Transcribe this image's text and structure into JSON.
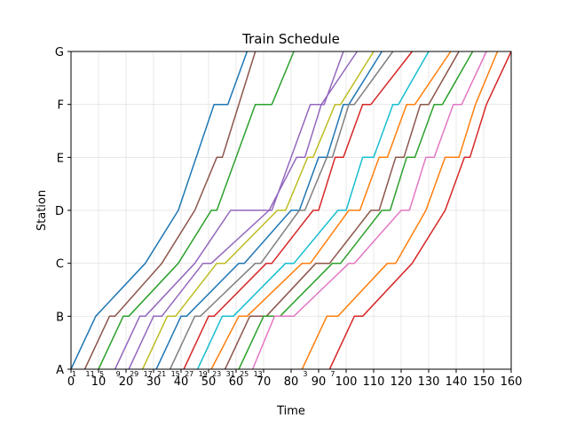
{
  "chart_data": {
    "type": "line",
    "title": "Train Schedule",
    "xlabel": "Time",
    "ylabel": "Station",
    "xlim": [
      0,
      160
    ],
    "x_ticks": [
      0,
      10,
      20,
      30,
      40,
      50,
      60,
      70,
      80,
      90,
      100,
      110,
      120,
      130,
      140,
      150,
      160
    ],
    "stations": [
      "A",
      "B",
      "C",
      "D",
      "E",
      "F",
      "G"
    ],
    "grid": true,
    "dwell": 3,
    "series": [
      {
        "name": "1",
        "color": "#1f77b4",
        "points": [
          [
            0,
            0
          ],
          [
            9,
            1
          ],
          [
            27,
            2
          ],
          [
            39,
            3
          ],
          [
            52,
            5
          ],
          [
            57,
            5
          ],
          [
            64,
            6
          ]
        ]
      },
      {
        "name": "11",
        "color": "#8c564b",
        "points": [
          [
            5,
            0
          ],
          [
            14,
            1
          ],
          [
            16,
            1
          ],
          [
            33,
            2
          ],
          [
            45,
            3
          ],
          [
            53,
            4
          ],
          [
            55,
            4
          ],
          [
            67,
            6
          ]
        ]
      },
      {
        "name": "5",
        "color": "#2ca02c",
        "points": [
          [
            10,
            0
          ],
          [
            19,
            1
          ],
          [
            21,
            1
          ],
          [
            39,
            2
          ],
          [
            51,
            3
          ],
          [
            53,
            3
          ],
          [
            67,
            5
          ],
          [
            73,
            5
          ],
          [
            81,
            6
          ]
        ]
      },
      {
        "name": "9",
        "color": "#9467bd",
        "points": [
          [
            16,
            0
          ],
          [
            25,
            1
          ],
          [
            27,
            1
          ],
          [
            45,
            2
          ],
          [
            58,
            3
          ],
          [
            71,
            3
          ],
          [
            73,
            3
          ],
          [
            80,
            4
          ],
          [
            87,
            5
          ],
          [
            92,
            5
          ],
          [
            99,
            6
          ]
        ]
      },
      {
        "name": "29",
        "color": "#9467bd",
        "points": [
          [
            21,
            0
          ],
          [
            30,
            1
          ],
          [
            33,
            1
          ],
          [
            48,
            2
          ],
          [
            51,
            2
          ],
          [
            72,
            3
          ],
          [
            82,
            4
          ],
          [
            85,
            4
          ],
          [
            91,
            5
          ],
          [
            104,
            6
          ]
        ]
      },
      {
        "name": "17",
        "color": "#bcbd22",
        "points": [
          [
            26,
            0
          ],
          [
            35,
            1
          ],
          [
            38,
            1
          ],
          [
            53,
            2
          ],
          [
            56,
            2
          ],
          [
            75,
            3
          ],
          [
            78,
            3
          ],
          [
            86,
            4
          ],
          [
            88,
            4
          ],
          [
            96,
            5
          ],
          [
            98,
            5
          ],
          [
            110,
            6
          ]
        ]
      },
      {
        "name": "21",
        "color": "#1f77b4",
        "points": [
          [
            31,
            0
          ],
          [
            40,
            1
          ],
          [
            42,
            1
          ],
          [
            61,
            2
          ],
          [
            63,
            2
          ],
          [
            80,
            3
          ],
          [
            83,
            3
          ],
          [
            90,
            4
          ],
          [
            93,
            4
          ],
          [
            99,
            5
          ],
          [
            101,
            5
          ],
          [
            113,
            6
          ]
        ]
      },
      {
        "name": "15",
        "color": "#7f7f7f",
        "points": [
          [
            36,
            0
          ],
          [
            45,
            1
          ],
          [
            47,
            1
          ],
          [
            67,
            2
          ],
          [
            69,
            2
          ],
          [
            83,
            3
          ],
          [
            85,
            3
          ],
          [
            93,
            4
          ],
          [
            95,
            4
          ],
          [
            101,
            5
          ],
          [
            103,
            5
          ],
          [
            117,
            6
          ]
        ]
      },
      {
        "name": "27",
        "color": "#d62728",
        "points": [
          [
            41,
            0
          ],
          [
            50,
            1
          ],
          [
            52,
            1
          ],
          [
            71,
            2
          ],
          [
            73,
            2
          ],
          [
            88,
            3
          ],
          [
            90,
            3
          ],
          [
            96,
            4
          ],
          [
            99,
            4
          ],
          [
            106,
            5
          ],
          [
            109,
            5
          ],
          [
            124,
            6
          ]
        ]
      },
      {
        "name": "19",
        "color": "#17becf",
        "points": [
          [
            46,
            0
          ],
          [
            55,
            1
          ],
          [
            59,
            1
          ],
          [
            78,
            2
          ],
          [
            81,
            2
          ],
          [
            97,
            3
          ],
          [
            100,
            3
          ],
          [
            106,
            4
          ],
          [
            110,
            4
          ],
          [
            117,
            5
          ],
          [
            119,
            5
          ],
          [
            130,
            6
          ]
        ]
      },
      {
        "name": "23",
        "color": "#ff7f0e",
        "points": [
          [
            51,
            0
          ],
          [
            61,
            1
          ],
          [
            64,
            1
          ],
          [
            84,
            2
          ],
          [
            87,
            2
          ],
          [
            101,
            3
          ],
          [
            105,
            3
          ],
          [
            112,
            4
          ],
          [
            115,
            4
          ],
          [
            122,
            5
          ],
          [
            125,
            5
          ],
          [
            138,
            6
          ]
        ]
      },
      {
        "name": "31",
        "color": "#8c564b",
        "points": [
          [
            56,
            0
          ],
          [
            65,
            1
          ],
          [
            71,
            1
          ],
          [
            89,
            2
          ],
          [
            94,
            2
          ],
          [
            109,
            3
          ],
          [
            112,
            3
          ],
          [
            118,
            4
          ],
          [
            121,
            4
          ],
          [
            127,
            5
          ],
          [
            130,
            5
          ],
          [
            141,
            6
          ]
        ]
      },
      {
        "name": "25",
        "color": "#2ca02c",
        "points": [
          [
            61,
            0
          ],
          [
            70,
            1
          ],
          [
            76,
            1
          ],
          [
            95,
            2
          ],
          [
            98,
            2
          ],
          [
            113,
            3
          ],
          [
            116,
            3
          ],
          [
            122,
            4
          ],
          [
            125,
            4
          ],
          [
            132,
            5
          ],
          [
            135,
            5
          ],
          [
            146,
            6
          ]
        ]
      },
      {
        "name": "13",
        "color": "#e377c2",
        "points": [
          [
            66,
            0
          ],
          [
            74,
            1
          ],
          [
            81,
            1
          ],
          [
            101,
            2
          ],
          [
            103,
            2
          ],
          [
            120,
            3
          ],
          [
            123,
            3
          ],
          [
            129,
            4
          ],
          [
            132,
            4
          ],
          [
            139,
            5
          ],
          [
            142,
            5
          ],
          [
            151,
            6
          ]
        ]
      },
      {
        "name": "3",
        "color": "#ff7f0e",
        "points": [
          [
            84,
            0
          ],
          [
            93,
            1
          ],
          [
            97,
            1
          ],
          [
            115,
            2
          ],
          [
            118,
            2
          ],
          [
            129,
            3
          ],
          [
            136,
            4
          ],
          [
            141,
            4
          ],
          [
            147,
            5
          ],
          [
            155,
            6
          ]
        ]
      },
      {
        "name": "7",
        "color": "#d62728",
        "points": [
          [
            94,
            0
          ],
          [
            103,
            1
          ],
          [
            106,
            1
          ],
          [
            124,
            2
          ],
          [
            136,
            3
          ],
          [
            143,
            4
          ],
          [
            145,
            4
          ],
          [
            151,
            5
          ],
          [
            160,
            6
          ]
        ]
      }
    ]
  }
}
